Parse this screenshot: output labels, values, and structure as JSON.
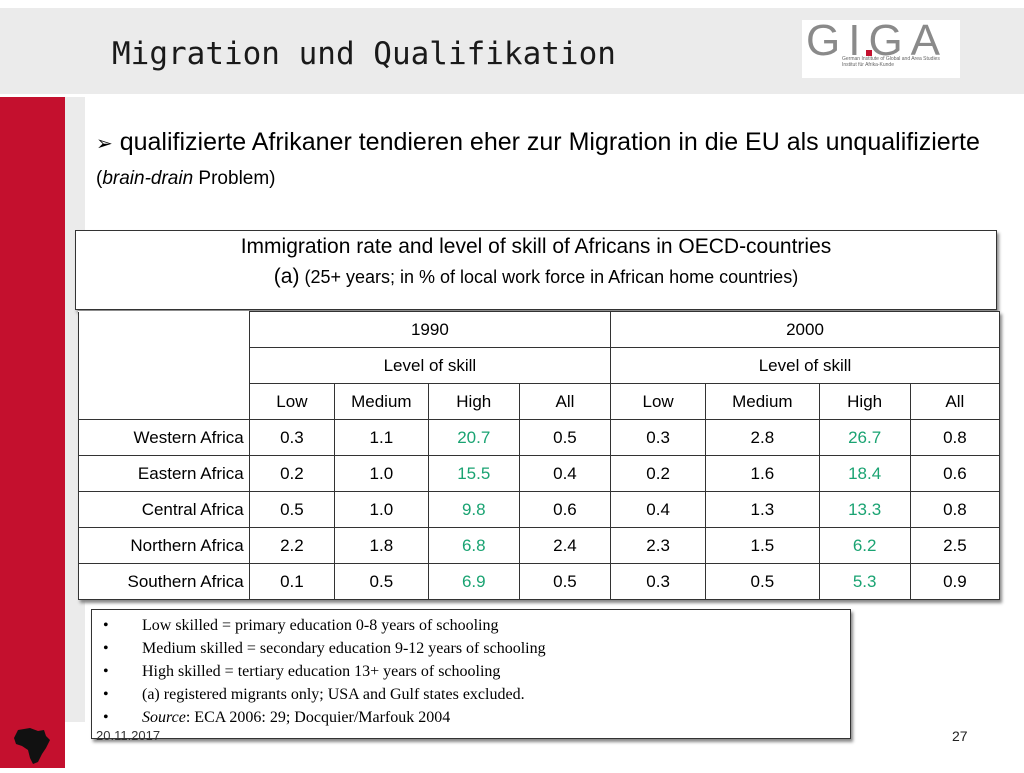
{
  "slide": {
    "title": "Migration und Qualifikation",
    "page_number": "27",
    "date": "20.11.2017"
  },
  "logo": {
    "letters": "GIGA",
    "subtitle_line1": "German Institute of Global and Area Studies",
    "subtitle_line2": "Institut für Afrika-Kunde"
  },
  "bullet": {
    "marker": "➢",
    "text": "qualifizierte Afrikaner  tendieren eher zur Migration in die EU als unqualifizierte ",
    "paren_open": "(",
    "paren_italic": "brain-drain",
    "paren_rest": " Problem)"
  },
  "table_caption": {
    "line1": "Immigration rate and level of skill of Africans in OECD-countries",
    "line2_prefix": "(a)",
    "line2_rest": " (25+ years; in  % of local work force in African home countries)"
  },
  "table": {
    "year_headers": [
      "1990",
      "2000"
    ],
    "level_header": "Level of skill",
    "skill_columns": [
      "Low",
      "Medium",
      "High",
      "All"
    ],
    "highlight_color": "#1aa372",
    "rows": [
      {
        "region": "Western Africa",
        "values": [
          "0.3",
          "1.1",
          "20.7",
          "0.5",
          "0.3",
          "2.8",
          "26.7",
          "0.8"
        ]
      },
      {
        "region": "Eastern Africa",
        "values": [
          "0.2",
          "1.0",
          "15.5",
          "0.4",
          "0.2",
          "1.6",
          "18.4",
          "0.6"
        ]
      },
      {
        "region": "Central Africa",
        "values": [
          "0.5",
          "1.0",
          "9.8",
          "0.6",
          "0.4",
          "1.3",
          "13.3",
          "0.8"
        ]
      },
      {
        "region": "Northern Africa",
        "values": [
          "2.2",
          "1.8",
          "6.8",
          "2.4",
          "2.3",
          "1.5",
          "6.2",
          "2.5"
        ]
      },
      {
        "region": "Southern Africa",
        "values": [
          "0.1",
          "0.5",
          "6.9",
          "0.5",
          "0.3",
          "0.5",
          "5.3",
          "0.9"
        ]
      }
    ]
  },
  "notes": {
    "items": [
      "Low skilled = primary education 0-8 years of schooling",
      "Medium skilled = secondary education 9-12 years of schooling",
      "High skilled = tertiary education 13+ years of schooling",
      "(a) registered migrants only; USA and Gulf states excluded."
    ],
    "source_label": "Source",
    "source_text": ": ECA 2006: 29; Docquier/Marfouk 2004"
  },
  "icons": {
    "footer": "africa-map-icon"
  },
  "colors": {
    "accent_red": "#c4102e",
    "header_grey": "#ebebeb"
  }
}
